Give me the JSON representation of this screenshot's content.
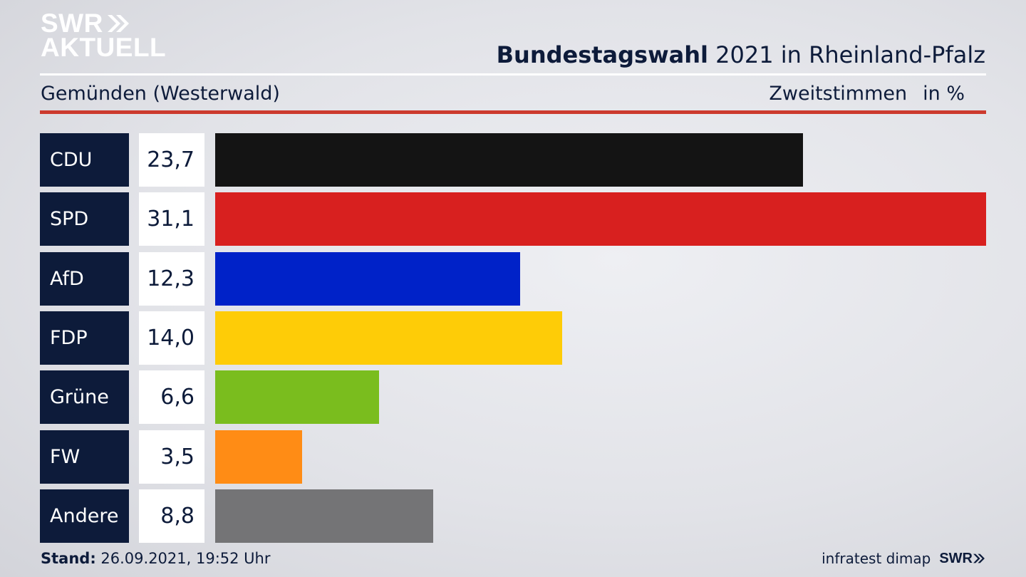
{
  "brand": {
    "line1": "SWR",
    "line2": "AKTUELL",
    "footer_logo": "SWR"
  },
  "header": {
    "title_bold": "Bundestagswahl",
    "title_rest": " 2021 in Rheinland-Pfalz",
    "subtitle": "Gemünden (Westerwald)",
    "vote_type": "Zweitstimmen",
    "unit": "in %"
  },
  "footer": {
    "stand_label": "Stand:",
    "stand_value": " 26.09.2021, 19:52 Uhr",
    "source": "infratest dimap"
  },
  "colors": {
    "background": "#e6e7eb",
    "navy": "#0d1b3a",
    "accent_red_line": "#cc3a2e"
  },
  "chart_data": {
    "type": "bar",
    "orientation": "horizontal",
    "title": "Bundestagswahl 2021 in Rheinland-Pfalz",
    "subtitle": "Gemünden (Westerwald)",
    "unit": "in %",
    "categories": [
      "CDU",
      "SPD",
      "AfD",
      "FDP",
      "Grüne",
      "FW",
      "Andere"
    ],
    "values": [
      23.7,
      31.1,
      12.3,
      14.0,
      6.6,
      3.5,
      8.8
    ],
    "value_labels": [
      "23,7",
      "31,1",
      "12,3",
      "14,0",
      "6,6",
      "3,5",
      "8,8"
    ],
    "colors": [
      "#141414",
      "#d8201f",
      "#0022c8",
      "#fecc07",
      "#7abd1e",
      "#ff8c15",
      "#747476"
    ],
    "xlim": [
      0,
      31.1
    ],
    "grid": false
  }
}
